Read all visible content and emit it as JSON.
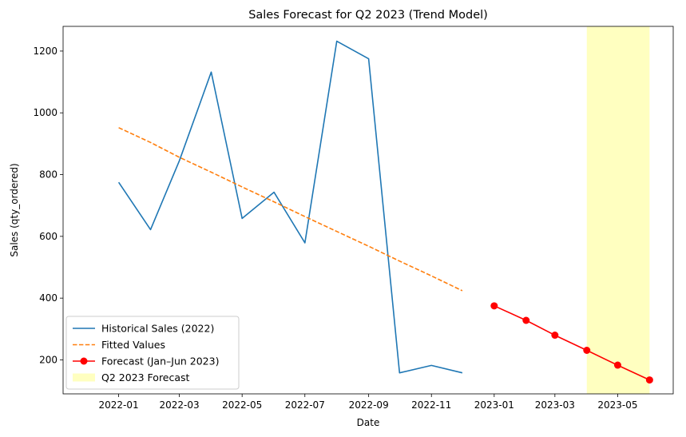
{
  "chart_data": {
    "type": "line",
    "title": "Sales Forecast for Q2 2023 (Trend Model)",
    "xlabel": "Date",
    "ylabel": "Sales (qty_ordered)",
    "xlim": [
      "2021-11-08",
      "2023-06-24"
    ],
    "ylim": [
      90,
      1280
    ],
    "x_ticks": [
      "2022-01",
      "2022-03",
      "2022-05",
      "2022-07",
      "2022-09",
      "2022-11",
      "2023-01",
      "2023-03",
      "2023-05"
    ],
    "y_ticks": [
      200,
      400,
      600,
      800,
      1000,
      1200
    ],
    "grid": false,
    "legend_position": "lower-left",
    "shaded_region": {
      "name": "Q2 2023 Forecast",
      "x_start": "2023-04-01",
      "x_end": "2023-06-01",
      "color": "#ffffc0"
    },
    "series": [
      {
        "name": "Historical Sales (2022)",
        "style": "solid",
        "color": "#1f77b4",
        "x": [
          "2022-01-01",
          "2022-02-01",
          "2022-03-01",
          "2022-04-01",
          "2022-05-01",
          "2022-06-01",
          "2022-07-01",
          "2022-08-01",
          "2022-09-01",
          "2022-10-01",
          "2022-11-01",
          "2022-12-01"
        ],
        "values": [
          775,
          622,
          845,
          1132,
          658,
          743,
          579,
          1232,
          1175,
          158,
          182,
          158
        ]
      },
      {
        "name": "Fitted Values",
        "style": "dashed",
        "color": "#ff7f0e",
        "x": [
          "2022-01-01",
          "2022-02-01",
          "2022-03-01",
          "2022-04-01",
          "2022-05-01",
          "2022-06-01",
          "2022-07-01",
          "2022-08-01",
          "2022-09-01",
          "2022-10-01",
          "2022-11-01",
          "2022-12-01"
        ],
        "values": [
          952,
          904,
          856,
          808,
          760,
          712,
          664,
          616,
          568,
          520,
          472,
          424
        ]
      },
      {
        "name": "Forecast (Jan–Jun 2023)",
        "style": "solid-markers",
        "color": "#ff0000",
        "x": [
          "2023-01-01",
          "2023-02-01",
          "2023-03-01",
          "2023-04-01",
          "2023-05-01",
          "2023-06-01"
        ],
        "values": [
          375,
          328,
          280,
          231,
          183,
          135
        ]
      }
    ]
  }
}
